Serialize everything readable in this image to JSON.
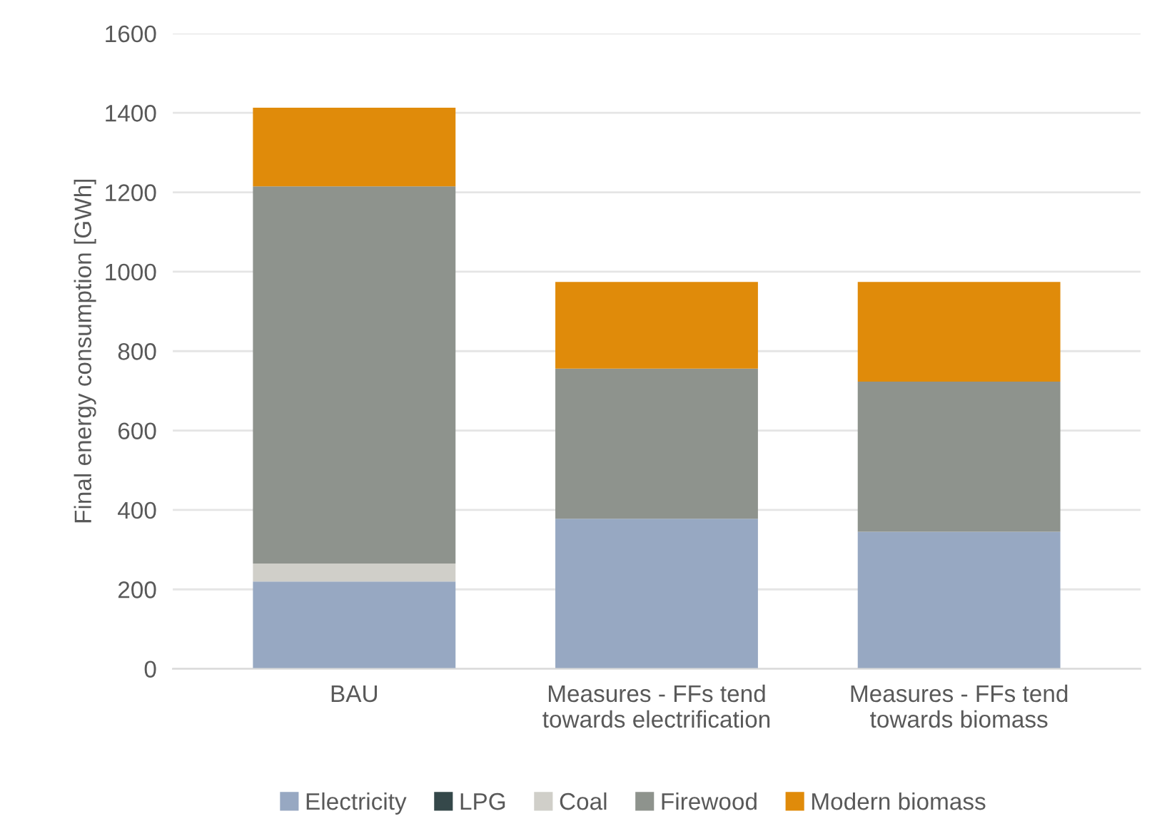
{
  "chart_data": {
    "type": "bar",
    "stacked": true,
    "ylabel": "Final energy consumption [GWh]",
    "categories": [
      "BAU",
      "Measures - FFs tend\ntowards electrification",
      "Measures - FFs tend\ntowards biomass"
    ],
    "series": [
      {
        "name": "Electricity",
        "color": "#97a8c2",
        "values": [
          220,
          378,
          345
        ]
      },
      {
        "name": "LPG",
        "color": "#35484a",
        "values": [
          0,
          0,
          0
        ]
      },
      {
        "name": "Coal",
        "color": "#d0cfc9",
        "values": [
          45,
          0,
          0
        ]
      },
      {
        "name": "Firewood",
        "color": "#8e938d",
        "values": [
          950,
          378,
          378
        ]
      },
      {
        "name": "Modern biomass",
        "color": "#e08b0a",
        "values": [
          198,
          218,
          251
        ]
      }
    ],
    "ylim": [
      0,
      1600
    ],
    "yticks": [
      0,
      200,
      400,
      600,
      800,
      1000,
      1200,
      1400,
      1600
    ],
    "grid": "y",
    "legend": "bottom"
  }
}
